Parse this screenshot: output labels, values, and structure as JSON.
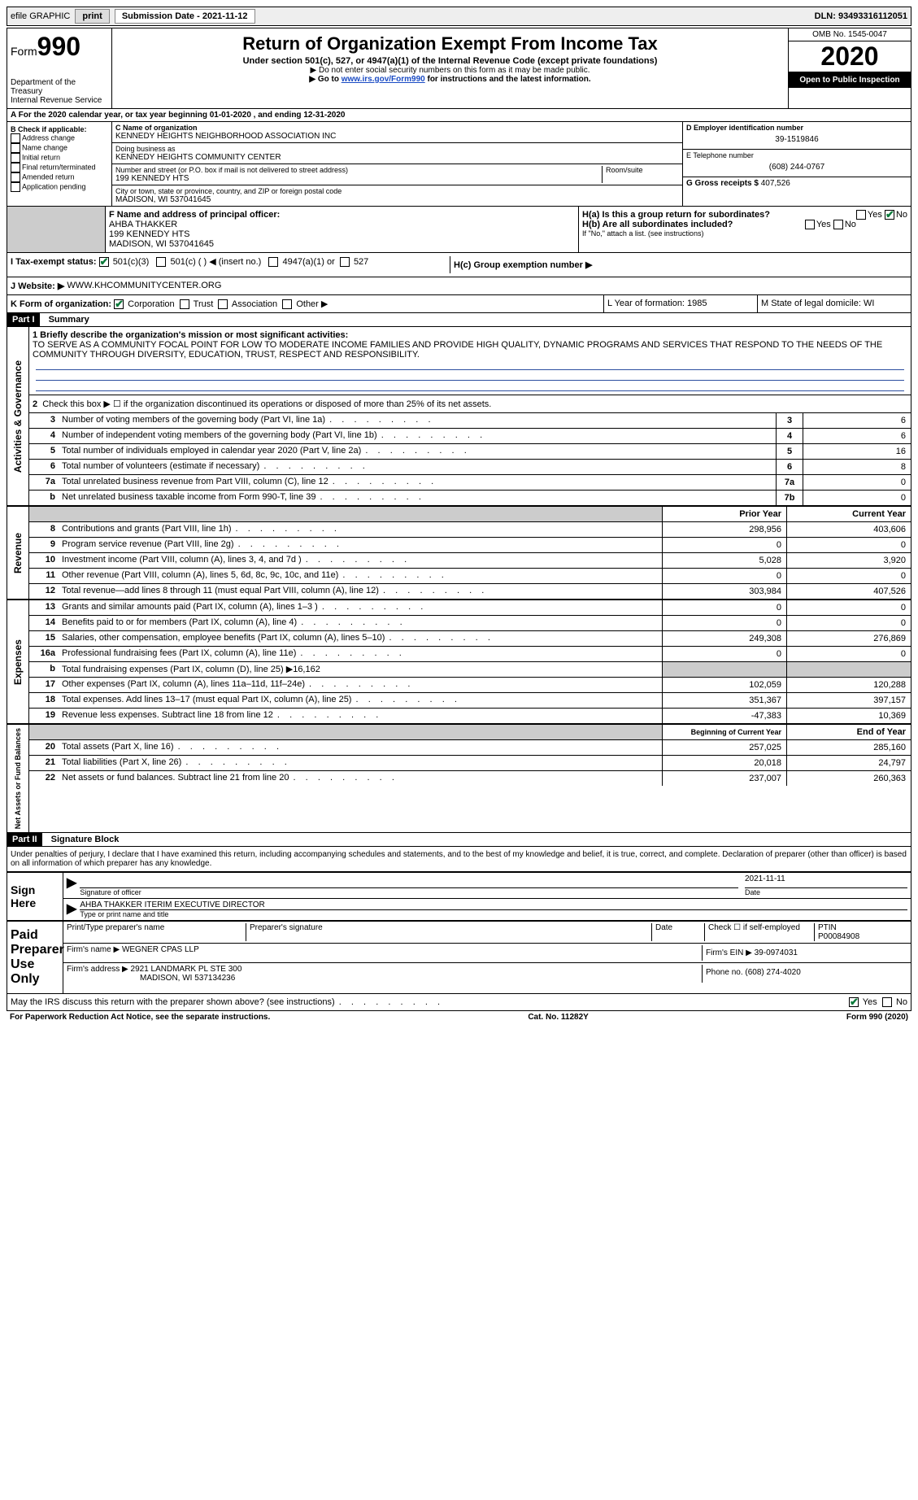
{
  "topbar": {
    "efile": "efile GRAPHIC",
    "print": "print",
    "subdate_label": "Submission Date - 2021-11-12",
    "dln_label": "DLN: 93493316112051"
  },
  "header": {
    "form_word": "Form",
    "form_num": "990",
    "dept": "Department of the Treasury\nInternal Revenue Service",
    "title": "Return of Organization Exempt From Income Tax",
    "subtitle": "Under section 501(c), 527, or 4947(a)(1) of the Internal Revenue Code (except private foundations)",
    "note1": "▶ Do not enter social security numbers on this form as it may be made public.",
    "note2_pre": "▶ Go to ",
    "note2_link": "www.irs.gov/Form990",
    "note2_post": " for instructions and the latest information.",
    "omb": "OMB No. 1545-0047",
    "year": "2020",
    "open": "Open to Public Inspection"
  },
  "sectionA": "A   For the 2020 calendar year, or tax year beginning 01-01-2020     , and ending 12-31-2020",
  "B": {
    "title": "B Check if applicable:",
    "items": [
      "Address change",
      "Name change",
      "Initial return",
      "Final return/terminated",
      "Amended return",
      "Application pending"
    ]
  },
  "C": {
    "name_label": "C Name of organization",
    "name": "KENNEDY HEIGHTS NEIGHBORHOOD ASSOCIATION INC",
    "dba_label": "Doing business as",
    "dba": "KENNEDY HEIGHTS COMMUNITY CENTER",
    "street_label": "Number and street (or P.O. box if mail is not delivered to street address)",
    "street": "199 KENNEDY HTS",
    "room_label": "Room/suite",
    "city_label": "City or town, state or province, country, and ZIP or foreign postal code",
    "city": "MADISON, WI  537041645"
  },
  "D": {
    "label": "D Employer identification number",
    "val": "39-1519846"
  },
  "E": {
    "label": "E Telephone number",
    "val": "(608) 244-0767"
  },
  "G": {
    "label": "G Gross receipts $",
    "val": "407,526"
  },
  "F": {
    "label": "F  Name and address of principal officer:",
    "name": "AHBA THAKKER",
    "addr1": "199 KENNEDY HTS",
    "addr2": "MADISON, WI  537041645"
  },
  "H": {
    "a": "H(a)  Is this a group return for subordinates?",
    "b": "H(b)  Are all subordinates included?",
    "bno_note": "If \"No,\" attach a list. (see instructions)",
    "c": "H(c)  Group exemption number ▶",
    "yes": "Yes",
    "no": "No"
  },
  "I": {
    "label": "I     Tax-exempt status:",
    "opt1": "501(c)(3)",
    "opt2": "501(c) (    ) ◀ (insert no.)",
    "opt3": "4947(a)(1) or",
    "opt4": "527"
  },
  "J": {
    "label": "J    Website: ▶",
    "val": "WWW.KHCOMMUNITYCENTER.ORG"
  },
  "K": {
    "label": "K Form of organization:",
    "opts": [
      "Corporation",
      "Trust",
      "Association",
      "Other ▶"
    ]
  },
  "L": {
    "label": "L Year of formation: 1985"
  },
  "M": {
    "label": "M State of legal domicile: WI"
  },
  "part1": {
    "title": "Part I",
    "sub": "Summary",
    "l1_label": "1   Briefly describe the organization's mission or most significant activities:",
    "mission": "TO SERVE AS A COMMUNITY FOCAL POINT FOR LOW TO MODERATE INCOME FAMILIES AND PROVIDE HIGH QUALITY, DYNAMIC PROGRAMS AND SERVICES THAT RESPOND TO THE NEEDS OF THE COMMUNITY THROUGH DIVERSITY, EDUCATION, TRUST, RESPECT AND RESPONSIBILITY.",
    "l2": "Check this box ▶ ☐  if the organization discontinued its operations or disposed of more than 25% of its net assets.",
    "gov": "Activities & Governance",
    "rev": "Revenue",
    "exp": "Expenses",
    "net": "Net Assets or Fund Balances",
    "lines_gov": [
      {
        "n": "3",
        "t": "Number of voting members of the governing body (Part VI, line 1a)",
        "box": "3",
        "v": "6"
      },
      {
        "n": "4",
        "t": "Number of independent voting members of the governing body (Part VI, line 1b)",
        "box": "4",
        "v": "6"
      },
      {
        "n": "5",
        "t": "Total number of individuals employed in calendar year 2020 (Part V, line 2a)",
        "box": "5",
        "v": "16"
      },
      {
        "n": "6",
        "t": "Total number of volunteers (estimate if necessary)",
        "box": "6",
        "v": "8"
      },
      {
        "n": "7a",
        "t": "Total unrelated business revenue from Part VIII, column (C), line 12",
        "box": "7a",
        "v": "0"
      },
      {
        "n": "b",
        "t": "Net unrelated business taxable income from Form 990-T, line 39",
        "box": "7b",
        "v": "0"
      }
    ],
    "col_prior": "Prior Year",
    "col_curr": "Current Year",
    "lines_rev": [
      {
        "n": "8",
        "t": "Contributions and grants (Part VIII, line 1h)",
        "p": "298,956",
        "c": "403,606"
      },
      {
        "n": "9",
        "t": "Program service revenue (Part VIII, line 2g)",
        "p": "0",
        "c": "0"
      },
      {
        "n": "10",
        "t": "Investment income (Part VIII, column (A), lines 3, 4, and 7d )",
        "p": "5,028",
        "c": "3,920"
      },
      {
        "n": "11",
        "t": "Other revenue (Part VIII, column (A), lines 5, 6d, 8c, 9c, 10c, and 11e)",
        "p": "0",
        "c": "0"
      },
      {
        "n": "12",
        "t": "Total revenue—add lines 8 through 11 (must equal Part VIII, column (A), line 12)",
        "p": "303,984",
        "c": "407,526"
      }
    ],
    "lines_exp": [
      {
        "n": "13",
        "t": "Grants and similar amounts paid (Part IX, column (A), lines 1–3 )",
        "p": "0",
        "c": "0"
      },
      {
        "n": "14",
        "t": "Benefits paid to or for members (Part IX, column (A), line 4)",
        "p": "0",
        "c": "0"
      },
      {
        "n": "15",
        "t": "Salaries, other compensation, employee benefits (Part IX, column (A), lines 5–10)",
        "p": "249,308",
        "c": "276,869"
      },
      {
        "n": "16a",
        "t": "Professional fundraising fees (Part IX, column (A), line 11e)",
        "p": "0",
        "c": "0"
      },
      {
        "n": "b",
        "t": "Total fundraising expenses (Part IX, column (D), line 25) ▶16,162",
        "p": "",
        "c": "",
        "shade": true
      },
      {
        "n": "17",
        "t": "Other expenses (Part IX, column (A), lines 11a–11d, 11f–24e)",
        "p": "102,059",
        "c": "120,288"
      },
      {
        "n": "18",
        "t": "Total expenses. Add lines 13–17 (must equal Part IX, column (A), line 25)",
        "p": "351,367",
        "c": "397,157"
      },
      {
        "n": "19",
        "t": "Revenue less expenses. Subtract line 18 from line 12",
        "p": "-47,383",
        "c": "10,369"
      }
    ],
    "col_beg": "Beginning of Current Year",
    "col_end": "End of Year",
    "lines_net": [
      {
        "n": "20",
        "t": "Total assets (Part X, line 16)",
        "p": "257,025",
        "c": "285,160"
      },
      {
        "n": "21",
        "t": "Total liabilities (Part X, line 26)",
        "p": "20,018",
        "c": "24,797"
      },
      {
        "n": "22",
        "t": "Net assets or fund balances. Subtract line 21 from line 20",
        "p": "237,007",
        "c": "260,363"
      }
    ]
  },
  "part2": {
    "title": "Part II",
    "sub": "Signature Block",
    "decl": "Under penalties of perjury, I declare that I have examined this return, including accompanying schedules and statements, and to the best of my knowledge and belief, it is true, correct, and complete. Declaration of preparer (other than officer) is based on all information of which preparer has any knowledge.",
    "sign_here": "Sign Here",
    "sig_officer": "Signature of officer",
    "sig_date": "2021-11-11",
    "date_label": "Date",
    "officer_name": "AHBA THAKKER  ITERIM EXECUTIVE DIRECTOR",
    "type_name": "Type or print name and title",
    "paid": "Paid Preparer Use Only",
    "prep_name_lbl": "Print/Type preparer's name",
    "prep_sig_lbl": "Preparer's signature",
    "check_self": "Check ☐ if self-employed",
    "ptin_lbl": "PTIN",
    "ptin": "P00084908",
    "firm_name_lbl": "Firm's name    ▶",
    "firm_name": "WEGNER CPAS LLP",
    "firm_ein_lbl": "Firm's EIN ▶",
    "firm_ein": "39-0974031",
    "firm_addr_lbl": "Firm's address ▶",
    "firm_addr1": "2921 LANDMARK PL STE 300",
    "firm_addr2": "MADISON, WI  537134236",
    "phone_lbl": "Phone no.",
    "phone": "(608) 274-4020",
    "discuss": "May the IRS discuss this return with the preparer shown above? (see instructions)",
    "yes": "Yes",
    "no": "No"
  },
  "footer": {
    "left": "For Paperwork Reduction Act Notice, see the separate instructions.",
    "mid": "Cat. No. 11282Y",
    "right": "Form 990 (2020)"
  }
}
